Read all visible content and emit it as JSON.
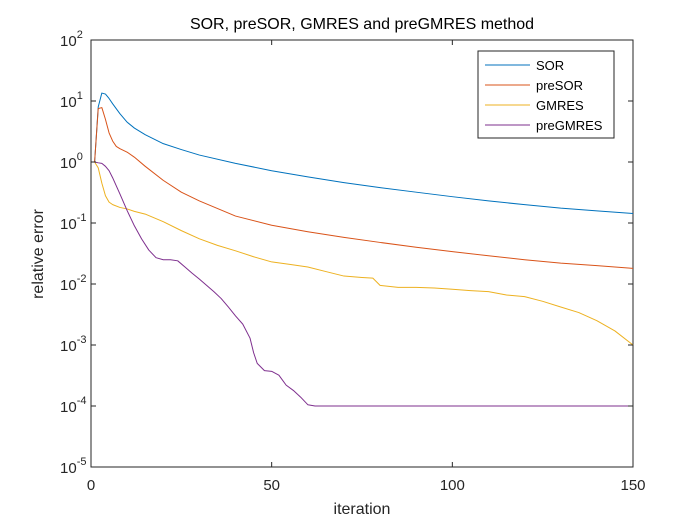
{
  "chart_data": {
    "type": "line",
    "title": "SOR, preSOR, GMRES and preGMRES method",
    "xlabel": "iteration",
    "ylabel": "relative error",
    "xlim": [
      0,
      150
    ],
    "ylim": [
      1e-05,
      100
    ],
    "yscale": "log",
    "xticks": [
      0,
      50,
      100,
      150
    ],
    "xtick_labels": [
      "0",
      "50",
      "100",
      "150"
    ],
    "yticks": [
      -5,
      -4,
      -3,
      -2,
      -1,
      0,
      1,
      2
    ],
    "ytick_labels": [
      {
        "base": "10",
        "exp": "-5"
      },
      {
        "base": "10",
        "exp": "-4"
      },
      {
        "base": "10",
        "exp": "-3"
      },
      {
        "base": "10",
        "exp": "-2"
      },
      {
        "base": "10",
        "exp": "-1"
      },
      {
        "base": "10",
        "exp": "0"
      },
      {
        "base": "10",
        "exp": "1"
      },
      {
        "base": "10",
        "exp": "2"
      }
    ],
    "grid": false,
    "legend_position": "top-right",
    "series": [
      {
        "name": "SOR",
        "color": "#0072BD",
        "x": [
          1,
          2,
          3,
          4,
          5,
          6,
          8,
          10,
          12,
          15,
          20,
          25,
          30,
          40,
          50,
          60,
          70,
          80,
          90,
          100,
          110,
          120,
          130,
          140,
          150
        ],
        "y": [
          1.0,
          8.0,
          13.5,
          13.0,
          11.0,
          9.0,
          6.2,
          4.5,
          3.6,
          2.8,
          2.0,
          1.6,
          1.3,
          0.95,
          0.72,
          0.57,
          0.46,
          0.38,
          0.32,
          0.27,
          0.23,
          0.2,
          0.175,
          0.158,
          0.143
        ]
      },
      {
        "name": "preSOR",
        "color": "#D95319",
        "x": [
          1,
          2,
          3,
          4,
          5,
          6,
          7,
          8,
          10,
          12,
          15,
          20,
          25,
          30,
          40,
          50,
          60,
          70,
          80,
          90,
          100,
          110,
          120,
          130,
          140,
          150
        ],
        "y": [
          1.0,
          7.5,
          7.8,
          5.0,
          3.0,
          2.2,
          1.8,
          1.65,
          1.45,
          1.2,
          0.85,
          0.5,
          0.32,
          0.23,
          0.13,
          0.092,
          0.072,
          0.058,
          0.048,
          0.04,
          0.034,
          0.029,
          0.025,
          0.022,
          0.02,
          0.018
        ]
      },
      {
        "name": "GMRES",
        "color": "#EDB120",
        "x": [
          1,
          2,
          3,
          4,
          5,
          6,
          8,
          10,
          12,
          15,
          20,
          25,
          30,
          35,
          40,
          45,
          50,
          55,
          60,
          65,
          70,
          75,
          78,
          80,
          85,
          90,
          95,
          100,
          105,
          110,
          115,
          120,
          125,
          130,
          135,
          140,
          145,
          150
        ],
        "y": [
          1.0,
          0.8,
          0.45,
          0.28,
          0.22,
          0.2,
          0.18,
          0.17,
          0.155,
          0.14,
          0.105,
          0.075,
          0.055,
          0.043,
          0.035,
          0.028,
          0.023,
          0.021,
          0.019,
          0.016,
          0.0135,
          0.0128,
          0.0125,
          0.0095,
          0.0088,
          0.0088,
          0.0086,
          0.0082,
          0.0078,
          0.0075,
          0.0066,
          0.0062,
          0.0052,
          0.0042,
          0.0034,
          0.0025,
          0.0017,
          0.001
        ]
      },
      {
        "name": "preGMRES",
        "color": "#7E2F8E",
        "x": [
          1,
          2,
          3,
          4,
          5,
          6,
          8,
          10,
          12,
          14,
          16,
          18,
          20,
          22,
          24,
          26,
          28,
          30,
          32,
          34,
          36,
          38,
          40,
          42,
          44,
          45,
          46,
          48,
          50,
          52,
          54,
          56,
          58,
          60,
          62,
          70,
          80,
          90,
          100,
          110,
          120,
          130,
          140,
          150
        ],
        "y": [
          1.0,
          0.97,
          0.95,
          0.85,
          0.72,
          0.55,
          0.3,
          0.16,
          0.09,
          0.055,
          0.036,
          0.027,
          0.025,
          0.025,
          0.024,
          0.019,
          0.015,
          0.012,
          0.0095,
          0.0075,
          0.0058,
          0.0042,
          0.003,
          0.0022,
          0.0013,
          0.00075,
          0.0005,
          0.00038,
          0.00037,
          0.00032,
          0.00022,
          0.00018,
          0.00014,
          0.000105,
          0.0001,
          0.0001,
          0.0001,
          0.0001,
          0.0001,
          0.0001,
          0.0001,
          0.0001,
          0.0001,
          0.0001
        ]
      }
    ]
  }
}
